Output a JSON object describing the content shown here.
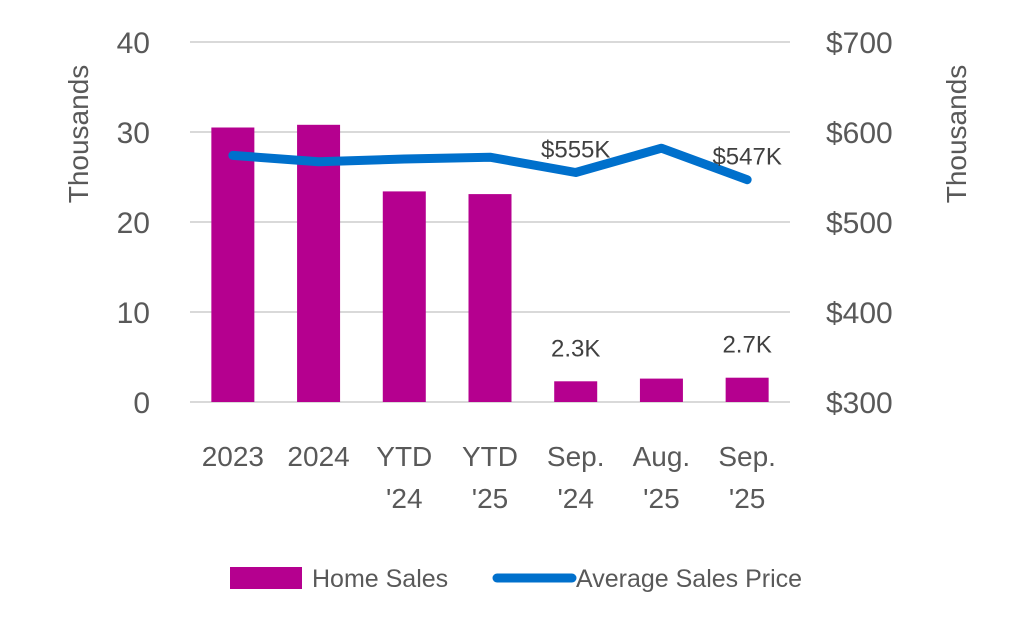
{
  "chart_data": {
    "type": "bar+line",
    "title": "",
    "categories": [
      [
        "2023"
      ],
      [
        "2024"
      ],
      [
        "YTD",
        "'24"
      ],
      [
        "YTD",
        "'25"
      ],
      [
        "Sep.",
        "'24"
      ],
      [
        "Aug.",
        "'25"
      ],
      [
        "Sep.",
        "'25"
      ]
    ],
    "series": [
      {
        "name": "Home Sales",
        "type": "bar",
        "axis": "left",
        "color": "#B5008F",
        "values": [
          30.5,
          30.8,
          23.4,
          23.1,
          2.3,
          2.6,
          2.7
        ],
        "data_labels": [
          null,
          null,
          null,
          null,
          "2.3K",
          null,
          "2.7K"
        ]
      },
      {
        "name": "Average Sales Price",
        "type": "line",
        "axis": "right",
        "color": "#0070CC",
        "values": [
          574,
          567,
          570,
          572,
          555,
          582,
          547
        ],
        "data_labels": [
          null,
          null,
          null,
          null,
          "$555K",
          null,
          "$547K"
        ]
      }
    ],
    "left_axis": {
      "label": "Thousands",
      "ylim": [
        0,
        40
      ],
      "ticks": [
        "0",
        "10",
        "20",
        "30",
        "40"
      ]
    },
    "right_axis": {
      "label": "Thousands",
      "ylim": [
        300,
        700
      ],
      "ticks": [
        "$300",
        "$400",
        "$500",
        "$600",
        "$700"
      ]
    },
    "grid": true,
    "legend": {
      "placement": "bottom",
      "entries": [
        "Home Sales",
        "Average Sales Price"
      ]
    }
  }
}
